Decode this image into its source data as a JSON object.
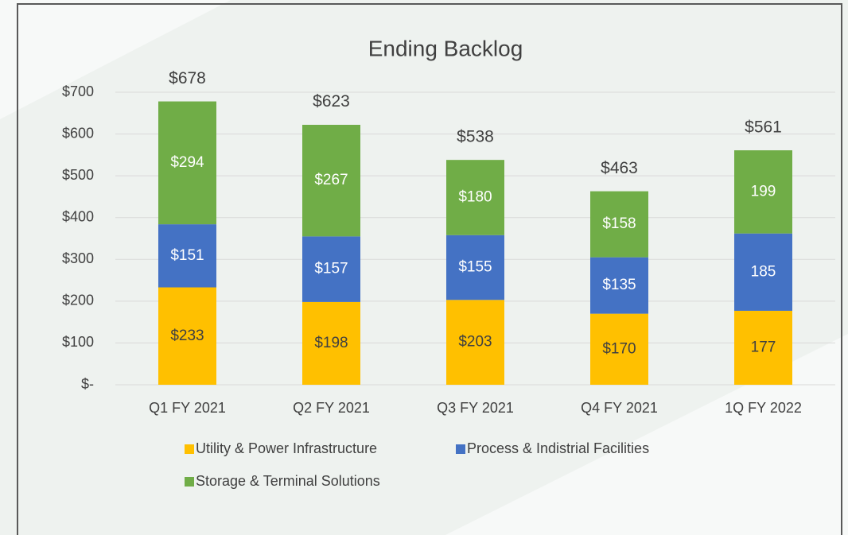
{
  "chart_data": {
    "type": "stacked_bar",
    "title": "Ending Backlog",
    "categories": [
      "Q1 FY 2021",
      "Q2 FY 2021",
      "Q3 FY 2021",
      "Q4 FY 2021",
      "1Q FY 2022"
    ],
    "series": [
      {
        "name": "Utility & Power Infrastructure",
        "color": "#ffc000",
        "values": [
          233,
          198,
          203,
          170,
          177
        ],
        "value_labels": [
          "$233",
          "$198",
          "$203",
          "$170",
          "177"
        ]
      },
      {
        "name": "Process & Indistrial Facilities",
        "color": "#4472c4",
        "values": [
          151,
          157,
          155,
          135,
          185
        ],
        "value_labels": [
          "$151",
          "$157",
          "$155",
          "$135",
          "185"
        ]
      },
      {
        "name": "Storage & Terminal Solutions",
        "color": "#70ad47",
        "values": [
          294,
          267,
          180,
          158,
          199
        ],
        "value_labels": [
          "$294",
          "$267",
          "$180",
          "$158",
          "199"
        ]
      }
    ],
    "totals": [
      678,
      623,
      538,
      463,
      561
    ],
    "total_labels": [
      "$678",
      "$623",
      "$538",
      "$463",
      "$561"
    ],
    "ylim": [
      0,
      700
    ],
    "yticks": [
      {
        "value": 0,
        "label": "$-"
      },
      {
        "value": 100,
        "label": "$100"
      },
      {
        "value": 200,
        "label": "$200"
      },
      {
        "value": 300,
        "label": "$300"
      },
      {
        "value": 400,
        "label": "$400"
      },
      {
        "value": 500,
        "label": "$500"
      },
      {
        "value": 600,
        "label": "$600"
      },
      {
        "value": 700,
        "label": "$700"
      }
    ],
    "grid": true,
    "legend": "bottom"
  }
}
